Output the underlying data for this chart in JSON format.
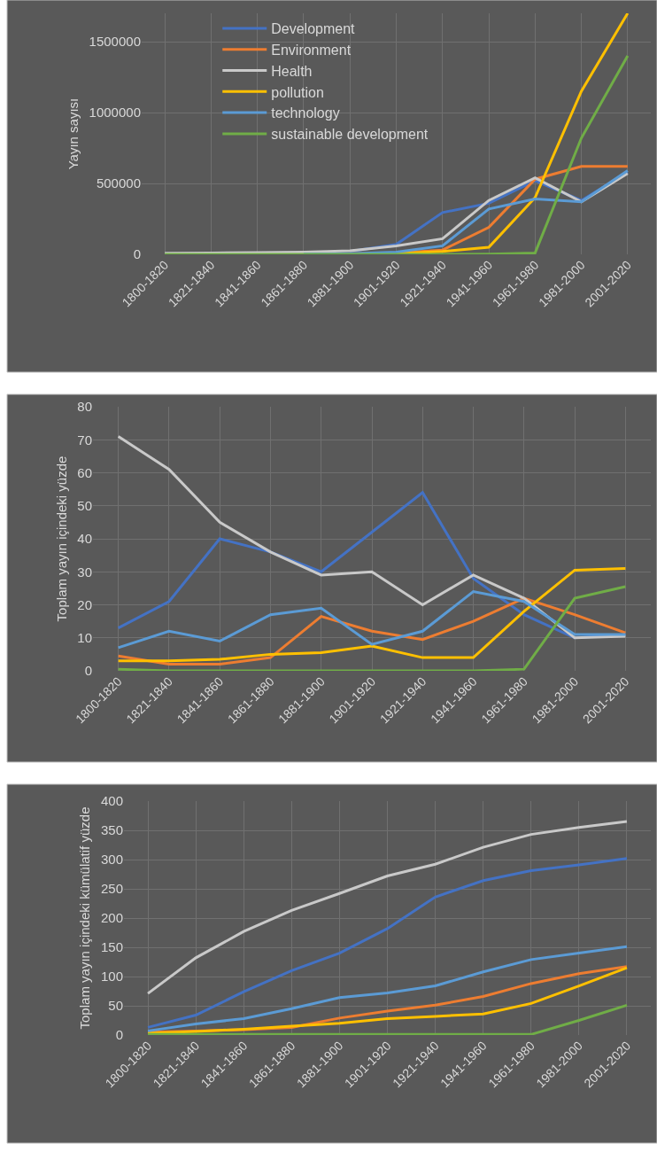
{
  "chart_data": [
    {
      "type": "line",
      "ylabel": "Yayın sayısı",
      "categories": [
        "1800-1820",
        "1821-1840",
        "1841-1860",
        "1861-1880",
        "1881-1900",
        "1901-1920",
        "1921-1940",
        "1941-1960",
        "1961-1980",
        "1981-2000",
        "2001-2020"
      ],
      "ylim": [
        0,
        1700000
      ],
      "yticks": [
        0,
        500000,
        1000000,
        1500000
      ],
      "grid": true,
      "legend": "top",
      "line_style": "solid",
      "series": [
        {
          "name": "Development",
          "color": "#4472c4",
          "values": [
            null,
            null,
            null,
            null,
            20000,
            70000,
            295000,
            360000,
            520000,
            380000,
            580000
          ]
        },
        {
          "name": "Environment",
          "color": "#ed7d31",
          "values": [
            null,
            null,
            null,
            null,
            5000,
            10000,
            30000,
            190000,
            530000,
            620000,
            620000
          ]
        },
        {
          "name": "Health",
          "color": "#c9c9c9",
          "values": [
            8000,
            10000,
            12000,
            15000,
            25000,
            60000,
            110000,
            380000,
            540000,
            370000,
            570000
          ]
        },
        {
          "name": "pollution",
          "color": "#ffc000",
          "values": [
            null,
            null,
            null,
            null,
            2000,
            5000,
            20000,
            50000,
            400000,
            1150000,
            1700000
          ]
        },
        {
          "name": "technology",
          "color": "#5b9bd5",
          "values": [
            null,
            null,
            null,
            2000,
            5000,
            15000,
            60000,
            320000,
            390000,
            370000,
            590000
          ]
        },
        {
          "name": "sustainable development",
          "color": "#70ad47",
          "values": [
            0,
            0,
            0,
            0,
            0,
            0,
            0,
            2000,
            10000,
            820000,
            1400000
          ]
        }
      ]
    },
    {
      "type": "line",
      "ylabel": "Toplam yayın içindeki yüzde",
      "categories": [
        "1800-1820",
        "1821-1840",
        "1841-1860",
        "1861-1880",
        "1881-1900",
        "1901-1920",
        "1921-1940",
        "1941-1960",
        "1961-1980",
        "1981-2000",
        "2001-2020"
      ],
      "ylim": [
        0,
        80
      ],
      "yticks": [
        0,
        10,
        20,
        30,
        40,
        50,
        60,
        70,
        80
      ],
      "grid": true,
      "line_style": "solid",
      "series": [
        {
          "color": "#4472c4",
          "values": [
            13,
            21,
            40,
            36,
            30,
            42,
            54,
            28,
            17,
            10,
            11
          ]
        },
        {
          "color": "#ed7d31",
          "values": [
            4.5,
            2,
            2,
            4,
            16.5,
            12,
            9.5,
            15,
            22,
            17,
            11.5
          ]
        },
        {
          "color": "#c9c9c9",
          "values": [
            71,
            61,
            45,
            36,
            29,
            30,
            20,
            29,
            22,
            10,
            10.5
          ]
        },
        {
          "color": "#ffc000",
          "values": [
            3,
            3,
            3.5,
            5,
            5.5,
            7.5,
            4,
            4,
            18,
            30.5,
            31
          ]
        },
        {
          "color": "#5b9bd5",
          "values": [
            7,
            12,
            9,
            17,
            19,
            8,
            12,
            24,
            21,
            11,
            11
          ]
        },
        {
          "color": "#70ad47",
          "values": [
            0.5,
            0,
            0,
            0,
            0,
            0,
            0,
            0,
            0.5,
            22,
            25.5
          ]
        }
      ]
    },
    {
      "type": "line",
      "ylabel": "Toplam yayın içindeki kümülatif yüzde",
      "categories": [
        "1800-1820",
        "1821-1840",
        "1841-1860",
        "1861-1880",
        "1881-1900",
        "1901-1920",
        "1921-1940",
        "1941-1960",
        "1961-1980",
        "1981-2000",
        "2001-2020"
      ],
      "ylim": [
        0,
        400
      ],
      "yticks": [
        0,
        50,
        100,
        150,
        200,
        250,
        300,
        350,
        400
      ],
      "grid": true,
      "line_style": "solid",
      "series": [
        {
          "color": "#4472c4",
          "values": [
            13,
            34,
            74,
            110,
            140,
            182,
            236,
            264,
            281,
            291,
            302
          ]
        },
        {
          "color": "#ed7d31",
          "values": [
            5,
            7,
            9,
            13,
            29,
            41,
            51,
            66,
            88,
            105,
            117
          ]
        },
        {
          "color": "#c9c9c9",
          "values": [
            71,
            132,
            177,
            213,
            242,
            272,
            292,
            321,
            343,
            355,
            365
          ]
        },
        {
          "color": "#ffc000",
          "values": [
            3,
            6,
            10,
            15,
            20,
            28,
            32,
            36,
            54,
            84,
            115
          ]
        },
        {
          "color": "#5b9bd5",
          "values": [
            7,
            19,
            28,
            45,
            64,
            72,
            84,
            108,
            129,
            140,
            151
          ]
        },
        {
          "color": "#70ad47",
          "values": [
            1,
            1,
            1,
            1,
            1,
            1,
            1,
            1,
            1,
            25,
            51
          ]
        }
      ]
    }
  ]
}
